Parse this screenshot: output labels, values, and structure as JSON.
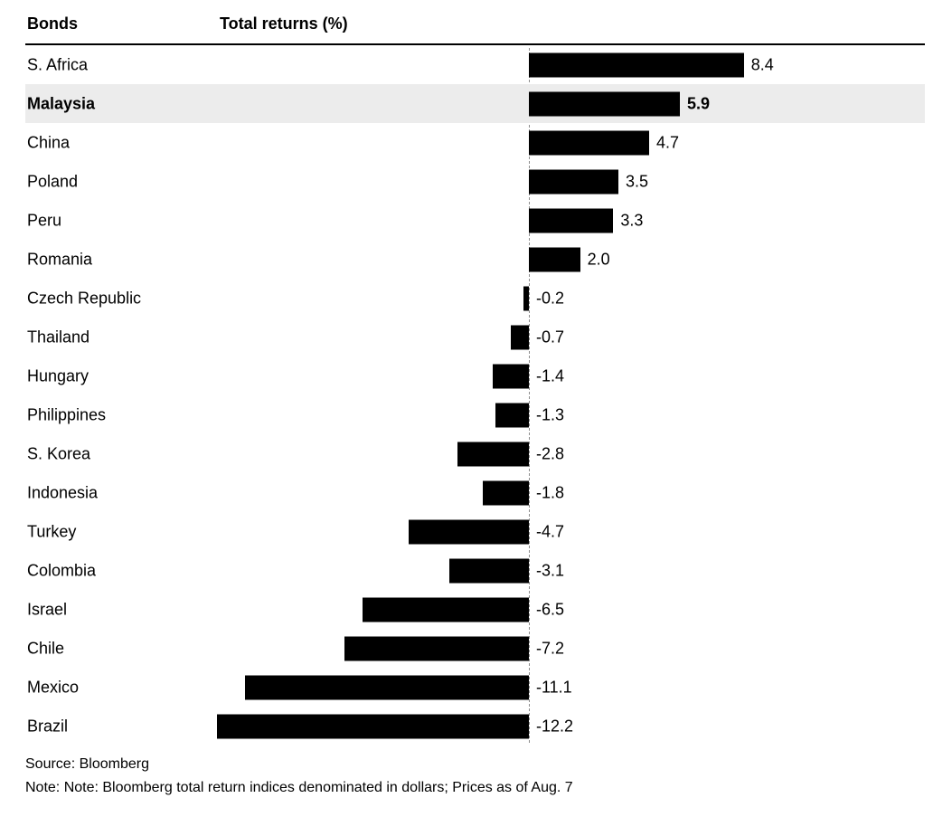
{
  "header": {
    "category_column_label": "Bonds",
    "value_column_label": "Total returns (%)"
  },
  "footer": {
    "source": "Source: Bloomberg",
    "note": "Note: Note: Bloomberg total return indices denominated in dollars; Prices as of Aug. 7"
  },
  "chart_data": {
    "type": "bar",
    "orientation": "horizontal",
    "title": "Total returns (%)",
    "xlabel": "Total returns (%)",
    "ylabel": "Bonds",
    "categories": [
      "S. Africa",
      "Malaysia",
      "China",
      "Poland",
      "Peru",
      "Romania",
      "Czech Republic",
      "Thailand",
      "Hungary",
      "Philippines",
      "S. Korea",
      "Indonesia",
      "Turkey",
      "Colombia",
      "Israel",
      "Chile",
      "Mexico",
      "Brazil"
    ],
    "values": [
      8.4,
      5.9,
      4.7,
      3.5,
      3.3,
      2.0,
      -0.2,
      -0.7,
      -1.4,
      -1.3,
      -2.8,
      -1.8,
      -4.7,
      -3.1,
      -6.5,
      -7.2,
      -11.1,
      -12.2
    ],
    "highlighted_category": "Malaysia",
    "xlim": [
      -12.2,
      8.4
    ],
    "zero_line": "dashed",
    "grid": false,
    "legend": false,
    "bar_color": "#000000",
    "highlight_row_bg": "#ececec",
    "value_labels": "shown"
  }
}
